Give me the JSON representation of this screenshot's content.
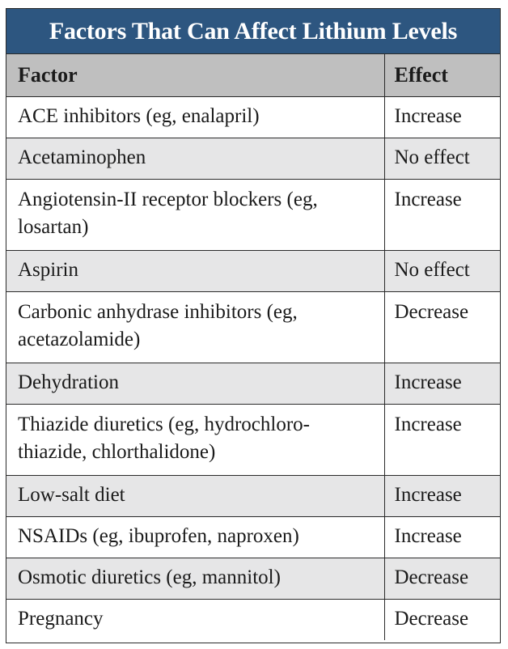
{
  "table": {
    "title": "Factors That Can Affect Lithium Levels",
    "headers": {
      "factor": "Factor",
      "effect": "Effect"
    },
    "rows": [
      {
        "factor": "ACE inhibitors (eg, enalapril)",
        "effect": "Increase"
      },
      {
        "factor": "Acetaminophen",
        "effect": "No effect"
      },
      {
        "factor": "Angiotensin-II receptor blockers (eg, losartan)",
        "effect": "Increase"
      },
      {
        "factor": "Aspirin",
        "effect": "No effect"
      },
      {
        "factor": "Carbonic anhydrase inhibitors (eg, acetazolamide)",
        "effect": "Decrease"
      },
      {
        "factor": "Dehydration",
        "effect": "Increase"
      },
      {
        "factor": "Thiazide diuretics (eg, hydrochloro-thiazide, chlorthalidone)",
        "effect": "Increase"
      },
      {
        "factor": "Low-salt diet",
        "effect": "Increase"
      },
      {
        "factor": "NSAIDs (eg, ibuprofen, naproxen)",
        "effect": "Increase"
      },
      {
        "factor": "Osmotic diuretics (eg, mannitol)",
        "effect": "Decrease"
      },
      {
        "factor": "Pregnancy",
        "effect": "Decrease"
      }
    ]
  },
  "colors": {
    "title_background": "#2d5680",
    "header_background": "#bfbfbf",
    "row_shade": "#e6e6e7",
    "border": "#2a2a2a"
  }
}
